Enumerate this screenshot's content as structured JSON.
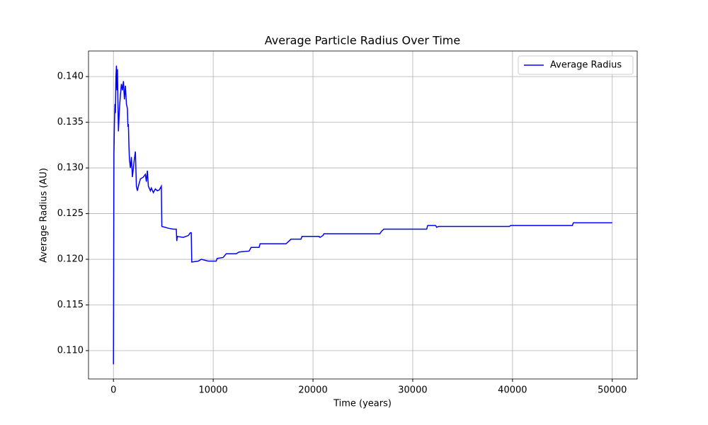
{
  "chart_data": {
    "type": "line",
    "title": "Average Particle Radius Over Time",
    "x_label": "Time (years)",
    "y_label": "Average Radius (AU)",
    "xlim": [
      -2500,
      52500
    ],
    "ylim": [
      0.1069,
      0.1428
    ],
    "xticks": [
      0,
      10000,
      20000,
      30000,
      40000,
      50000
    ],
    "yticks": [
      {
        "value": 0.11,
        "label": "0.110"
      },
      0.115,
      {
        "value": 0.12,
        "label": "0.120"
      },
      0.125,
      {
        "value": 0.13,
        "label": "0.130"
      },
      0.135,
      {
        "value": 0.14,
        "label": "0.140"
      }
    ],
    "grid": true,
    "legend": "upper right",
    "x": [
      0,
      50,
      100,
      150,
      200,
      250,
      300,
      350,
      400,
      450,
      500,
      600,
      700,
      800,
      900,
      1000,
      1100,
      1200,
      1300,
      1400,
      1450,
      1500,
      1550,
      1600,
      1700,
      1800,
      1900,
      2000,
      2100,
      2200,
      2300,
      2400,
      2500,
      2700,
      3000,
      3200,
      3300,
      3400,
      3500,
      3700,
      3800,
      4000,
      4200,
      4400,
      4600,
      4800,
      4850,
      5500,
      6000,
      6300,
      6350,
      6400,
      7000,
      7500,
      7700,
      7800,
      7850,
      8500,
      8800,
      9500,
      10300,
      10400,
      11000,
      11300,
      12300,
      12600,
      13600,
      13800,
      14600,
      14700,
      17300,
      17500,
      17800,
      18800,
      18900,
      20600,
      20700,
      21000,
      21100,
      26700,
      26900,
      27100,
      31400,
      31500,
      32300,
      32400,
      32600,
      39700,
      39800,
      46000,
      46100,
      50000
    ],
    "series": [
      {
        "name": "Average Radius",
        "color": "#0000ff",
        "values": [
          0.1085,
          0.1315,
          0.135,
          0.137,
          0.136,
          0.14,
          0.1412,
          0.1385,
          0.1408,
          0.137,
          0.134,
          0.1365,
          0.138,
          0.1392,
          0.1385,
          0.1395,
          0.1375,
          0.139,
          0.137,
          0.1365,
          0.1345,
          0.1348,
          0.1325,
          0.131,
          0.13,
          0.1312,
          0.129,
          0.13,
          0.131,
          0.1318,
          0.128,
          0.1275,
          0.128,
          0.1288,
          0.129,
          0.1293,
          0.1285,
          0.1297,
          0.128,
          0.1275,
          0.1278,
          0.1273,
          0.1277,
          0.1275,
          0.1276,
          0.128,
          0.1236,
          0.1234,
          0.1233,
          0.1233,
          0.122,
          0.1225,
          0.1224,
          0.1226,
          0.1229,
          0.1229,
          0.1197,
          0.1198,
          0.12,
          0.1198,
          0.1198,
          0.1201,
          0.1202,
          0.1206,
          0.1206,
          0.1208,
          0.1209,
          0.1213,
          0.1213,
          0.1217,
          0.1217,
          0.1219,
          0.1222,
          0.1222,
          0.1225,
          0.1225,
          0.1224,
          0.1226,
          0.1228,
          0.1228,
          0.1231,
          0.1233,
          0.1233,
          0.1237,
          0.1237,
          0.1235,
          0.1236,
          0.1236,
          0.1237,
          0.1237,
          0.124,
          0.124
        ]
      }
    ]
  }
}
